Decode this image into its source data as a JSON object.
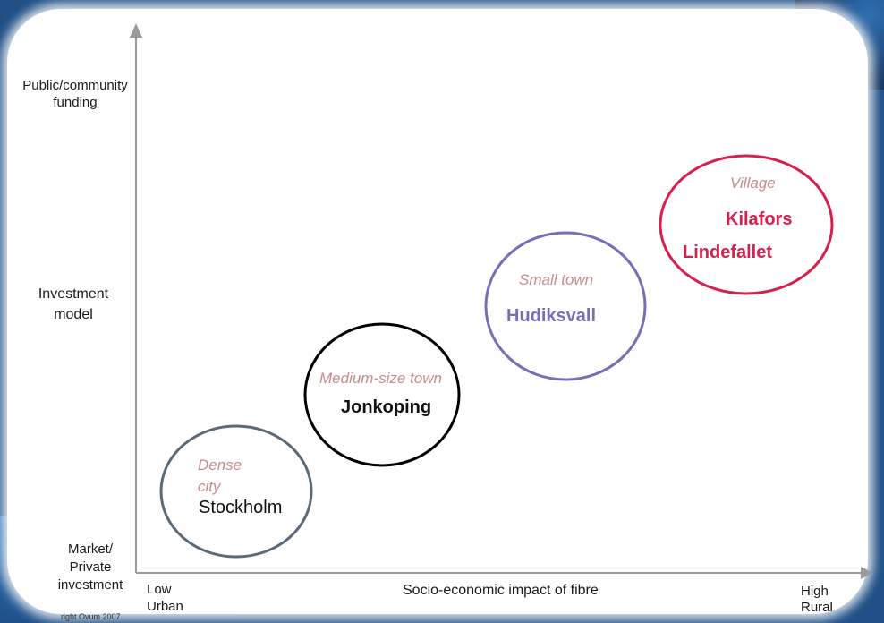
{
  "y_axis": {
    "top_label": "Public/community funding",
    "middle_label": "Investment model",
    "bottom_label": "Market/ Private investment"
  },
  "x_axis": {
    "left_label_1": "Low",
    "left_label_2": "Urban",
    "center_label": "Socio-economic impact of fibre",
    "right_label_1": "High",
    "right_label_2": "Rural"
  },
  "copyright": "right Ovum 2007",
  "clusters": [
    {
      "category_1": "Dense",
      "category_2": "city",
      "cities": [
        "Stockholm"
      ],
      "color": "#5a6a78"
    },
    {
      "category_1": "Medium-size town",
      "cities": [
        "Jonkoping"
      ],
      "color": "#000000"
    },
    {
      "category_1": "Small town",
      "cities": [
        "Hudiksvall"
      ],
      "color": "#7a6db5"
    },
    {
      "category_1": "Village",
      "cities": [
        "Kilafors",
        "Lindefallet"
      ],
      "color": "#d8204f"
    }
  ],
  "colors": {
    "category_text": "#c98b8b",
    "axis": "#9a9a9a",
    "background": "#1f4f86"
  }
}
